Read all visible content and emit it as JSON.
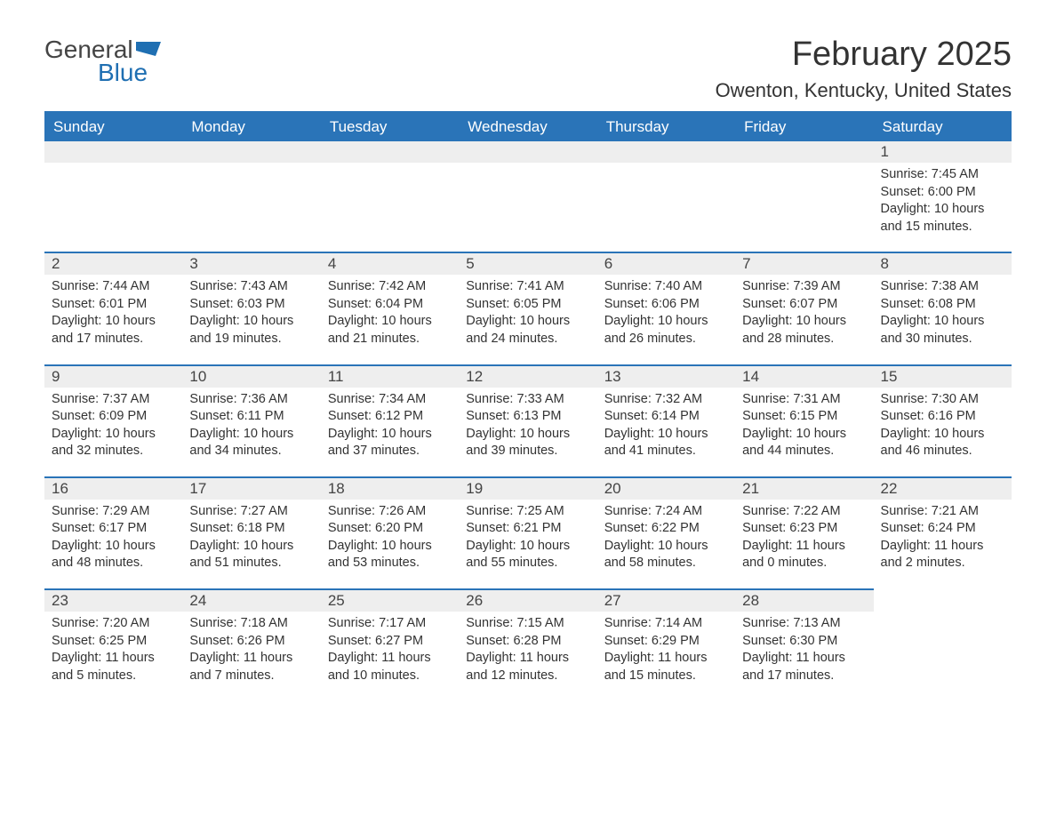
{
  "logo": {
    "word1": "General",
    "word2": "Blue"
  },
  "title": "February 2025",
  "location": "Owenton, Kentucky, United States",
  "colors": {
    "accent": "#2a74b8",
    "daynum_bg": "#eeeeee",
    "text": "#333333",
    "bg": "#ffffff"
  },
  "days_of_week": [
    "Sunday",
    "Monday",
    "Tuesday",
    "Wednesday",
    "Thursday",
    "Friday",
    "Saturday"
  ],
  "weeks": [
    [
      {
        "empty": true
      },
      {
        "empty": true
      },
      {
        "empty": true
      },
      {
        "empty": true
      },
      {
        "empty": true
      },
      {
        "empty": true
      },
      {
        "day": "1",
        "sunrise": "Sunrise: 7:45 AM",
        "sunset": "Sunset: 6:00 PM",
        "daylight": "Daylight: 10 hours and 15 minutes."
      }
    ],
    [
      {
        "day": "2",
        "sunrise": "Sunrise: 7:44 AM",
        "sunset": "Sunset: 6:01 PM",
        "daylight": "Daylight: 10 hours and 17 minutes."
      },
      {
        "day": "3",
        "sunrise": "Sunrise: 7:43 AM",
        "sunset": "Sunset: 6:03 PM",
        "daylight": "Daylight: 10 hours and 19 minutes."
      },
      {
        "day": "4",
        "sunrise": "Sunrise: 7:42 AM",
        "sunset": "Sunset: 6:04 PM",
        "daylight": "Daylight: 10 hours and 21 minutes."
      },
      {
        "day": "5",
        "sunrise": "Sunrise: 7:41 AM",
        "sunset": "Sunset: 6:05 PM",
        "daylight": "Daylight: 10 hours and 24 minutes."
      },
      {
        "day": "6",
        "sunrise": "Sunrise: 7:40 AM",
        "sunset": "Sunset: 6:06 PM",
        "daylight": "Daylight: 10 hours and 26 minutes."
      },
      {
        "day": "7",
        "sunrise": "Sunrise: 7:39 AM",
        "sunset": "Sunset: 6:07 PM",
        "daylight": "Daylight: 10 hours and 28 minutes."
      },
      {
        "day": "8",
        "sunrise": "Sunrise: 7:38 AM",
        "sunset": "Sunset: 6:08 PM",
        "daylight": "Daylight: 10 hours and 30 minutes."
      }
    ],
    [
      {
        "day": "9",
        "sunrise": "Sunrise: 7:37 AM",
        "sunset": "Sunset: 6:09 PM",
        "daylight": "Daylight: 10 hours and 32 minutes."
      },
      {
        "day": "10",
        "sunrise": "Sunrise: 7:36 AM",
        "sunset": "Sunset: 6:11 PM",
        "daylight": "Daylight: 10 hours and 34 minutes."
      },
      {
        "day": "11",
        "sunrise": "Sunrise: 7:34 AM",
        "sunset": "Sunset: 6:12 PM",
        "daylight": "Daylight: 10 hours and 37 minutes."
      },
      {
        "day": "12",
        "sunrise": "Sunrise: 7:33 AM",
        "sunset": "Sunset: 6:13 PM",
        "daylight": "Daylight: 10 hours and 39 minutes."
      },
      {
        "day": "13",
        "sunrise": "Sunrise: 7:32 AM",
        "sunset": "Sunset: 6:14 PM",
        "daylight": "Daylight: 10 hours and 41 minutes."
      },
      {
        "day": "14",
        "sunrise": "Sunrise: 7:31 AM",
        "sunset": "Sunset: 6:15 PM",
        "daylight": "Daylight: 10 hours and 44 minutes."
      },
      {
        "day": "15",
        "sunrise": "Sunrise: 7:30 AM",
        "sunset": "Sunset: 6:16 PM",
        "daylight": "Daylight: 10 hours and 46 minutes."
      }
    ],
    [
      {
        "day": "16",
        "sunrise": "Sunrise: 7:29 AM",
        "sunset": "Sunset: 6:17 PM",
        "daylight": "Daylight: 10 hours and 48 minutes."
      },
      {
        "day": "17",
        "sunrise": "Sunrise: 7:27 AM",
        "sunset": "Sunset: 6:18 PM",
        "daylight": "Daylight: 10 hours and 51 minutes."
      },
      {
        "day": "18",
        "sunrise": "Sunrise: 7:26 AM",
        "sunset": "Sunset: 6:20 PM",
        "daylight": "Daylight: 10 hours and 53 minutes."
      },
      {
        "day": "19",
        "sunrise": "Sunrise: 7:25 AM",
        "sunset": "Sunset: 6:21 PM",
        "daylight": "Daylight: 10 hours and 55 minutes."
      },
      {
        "day": "20",
        "sunrise": "Sunrise: 7:24 AM",
        "sunset": "Sunset: 6:22 PM",
        "daylight": "Daylight: 10 hours and 58 minutes."
      },
      {
        "day": "21",
        "sunrise": "Sunrise: 7:22 AM",
        "sunset": "Sunset: 6:23 PM",
        "daylight": "Daylight: 11 hours and 0 minutes."
      },
      {
        "day": "22",
        "sunrise": "Sunrise: 7:21 AM",
        "sunset": "Sunset: 6:24 PM",
        "daylight": "Daylight: 11 hours and 2 minutes."
      }
    ],
    [
      {
        "day": "23",
        "sunrise": "Sunrise: 7:20 AM",
        "sunset": "Sunset: 6:25 PM",
        "daylight": "Daylight: 11 hours and 5 minutes."
      },
      {
        "day": "24",
        "sunrise": "Sunrise: 7:18 AM",
        "sunset": "Sunset: 6:26 PM",
        "daylight": "Daylight: 11 hours and 7 minutes."
      },
      {
        "day": "25",
        "sunrise": "Sunrise: 7:17 AM",
        "sunset": "Sunset: 6:27 PM",
        "daylight": "Daylight: 11 hours and 10 minutes."
      },
      {
        "day": "26",
        "sunrise": "Sunrise: 7:15 AM",
        "sunset": "Sunset: 6:28 PM",
        "daylight": "Daylight: 11 hours and 12 minutes."
      },
      {
        "day": "27",
        "sunrise": "Sunrise: 7:14 AM",
        "sunset": "Sunset: 6:29 PM",
        "daylight": "Daylight: 11 hours and 15 minutes."
      },
      {
        "day": "28",
        "sunrise": "Sunrise: 7:13 AM",
        "sunset": "Sunset: 6:30 PM",
        "daylight": "Daylight: 11 hours and 17 minutes."
      },
      {
        "empty": true,
        "no_bar": true
      }
    ]
  ]
}
